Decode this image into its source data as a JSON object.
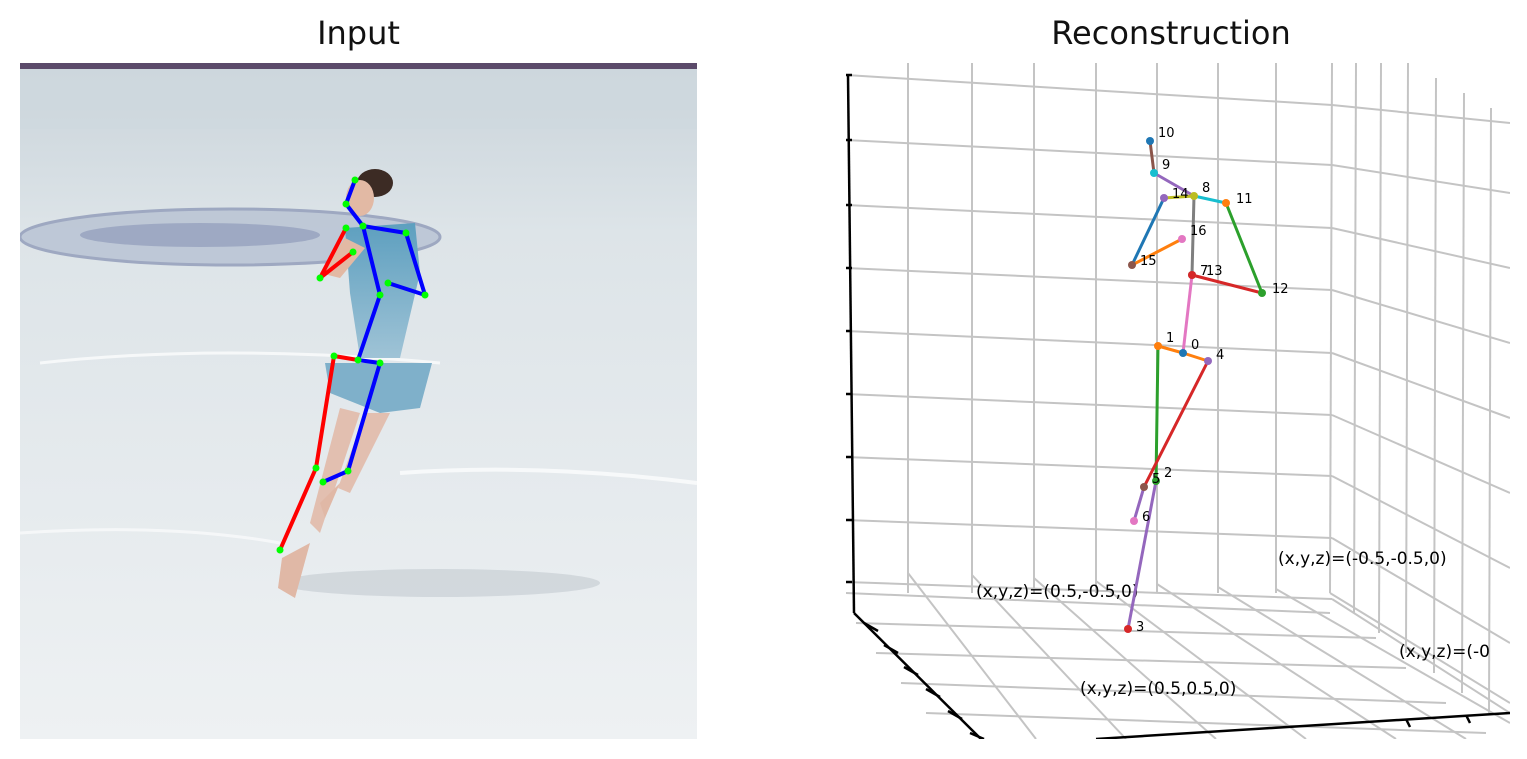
{
  "titles": {
    "left": "Input",
    "right": "Reconstruction"
  },
  "colors": {
    "left_limbs": "#ff0000",
    "right_limbs": "#0000ff",
    "keypoints": "#00ff00"
  },
  "joints": [
    {
      "id": 0,
      "label": "0",
      "color": "#1f77b4"
    },
    {
      "id": 1,
      "label": "1",
      "color": "#ff7f0e"
    },
    {
      "id": 2,
      "label": "2",
      "color": "#2ca02c"
    },
    {
      "id": 3,
      "label": "3",
      "color": "#d62728"
    },
    {
      "id": 4,
      "label": "4",
      "color": "#9467bd"
    },
    {
      "id": 5,
      "label": "5",
      "color": "#8c564b"
    },
    {
      "id": 6,
      "label": "6",
      "color": "#e377c2"
    },
    {
      "id": 7,
      "label": "7",
      "color": "#7f7f7f"
    },
    {
      "id": 8,
      "label": "8",
      "color": "#bcbd22"
    },
    {
      "id": 9,
      "label": "9",
      "color": "#17becf"
    },
    {
      "id": 10,
      "label": "10",
      "color": "#1f77b4"
    },
    {
      "id": 11,
      "label": "11",
      "color": "#ff7f0e"
    },
    {
      "id": 12,
      "label": "12",
      "color": "#2ca02c"
    },
    {
      "id": 13,
      "label": "13",
      "color": "#d62728"
    },
    {
      "id": 14,
      "label": "14",
      "color": "#9467bd"
    },
    {
      "id": 15,
      "label": "15",
      "color": "#8c564b"
    },
    {
      "id": 16,
      "label": "16",
      "color": "#e377c2"
    }
  ],
  "bones": [
    {
      "from": 0,
      "to": 1,
      "color": "#ff7f0e"
    },
    {
      "from": 1,
      "to": 2,
      "color": "#2ca02c"
    },
    {
      "from": 2,
      "to": 3,
      "color": "#9467bd"
    },
    {
      "from": 0,
      "to": 4,
      "color": "#ff7f0e"
    },
    {
      "from": 4,
      "to": 5,
      "color": "#d62728"
    },
    {
      "from": 5,
      "to": 6,
      "color": "#9467bd"
    },
    {
      "from": 0,
      "to": 7,
      "color": "#e377c2"
    },
    {
      "from": 7,
      "to": 8,
      "color": "#7f7f7f"
    },
    {
      "from": 8,
      "to": 9,
      "color": "#9467bd"
    },
    {
      "from": 9,
      "to": 10,
      "color": "#8c564b"
    },
    {
      "from": 8,
      "to": 11,
      "color": "#17becf"
    },
    {
      "from": 11,
      "to": 12,
      "color": "#2ca02c"
    },
    {
      "from": 12,
      "to": 13,
      "color": "#d62728"
    },
    {
      "from": 8,
      "to": 14,
      "color": "#bcbd22"
    },
    {
      "from": 14,
      "to": 15,
      "color": "#1f77b4"
    },
    {
      "from": 15,
      "to": 16,
      "color": "#ff7f0e"
    }
  ],
  "corner_labels": {
    "a": "(x,y,z)=(0.5,-0.5,0)",
    "b": "(x,y,z)=(-0.5,-0.5,0)",
    "c": "(x,y,z)=(0.5,0.5,0)",
    "d": "(x,y,z)=(-0"
  }
}
